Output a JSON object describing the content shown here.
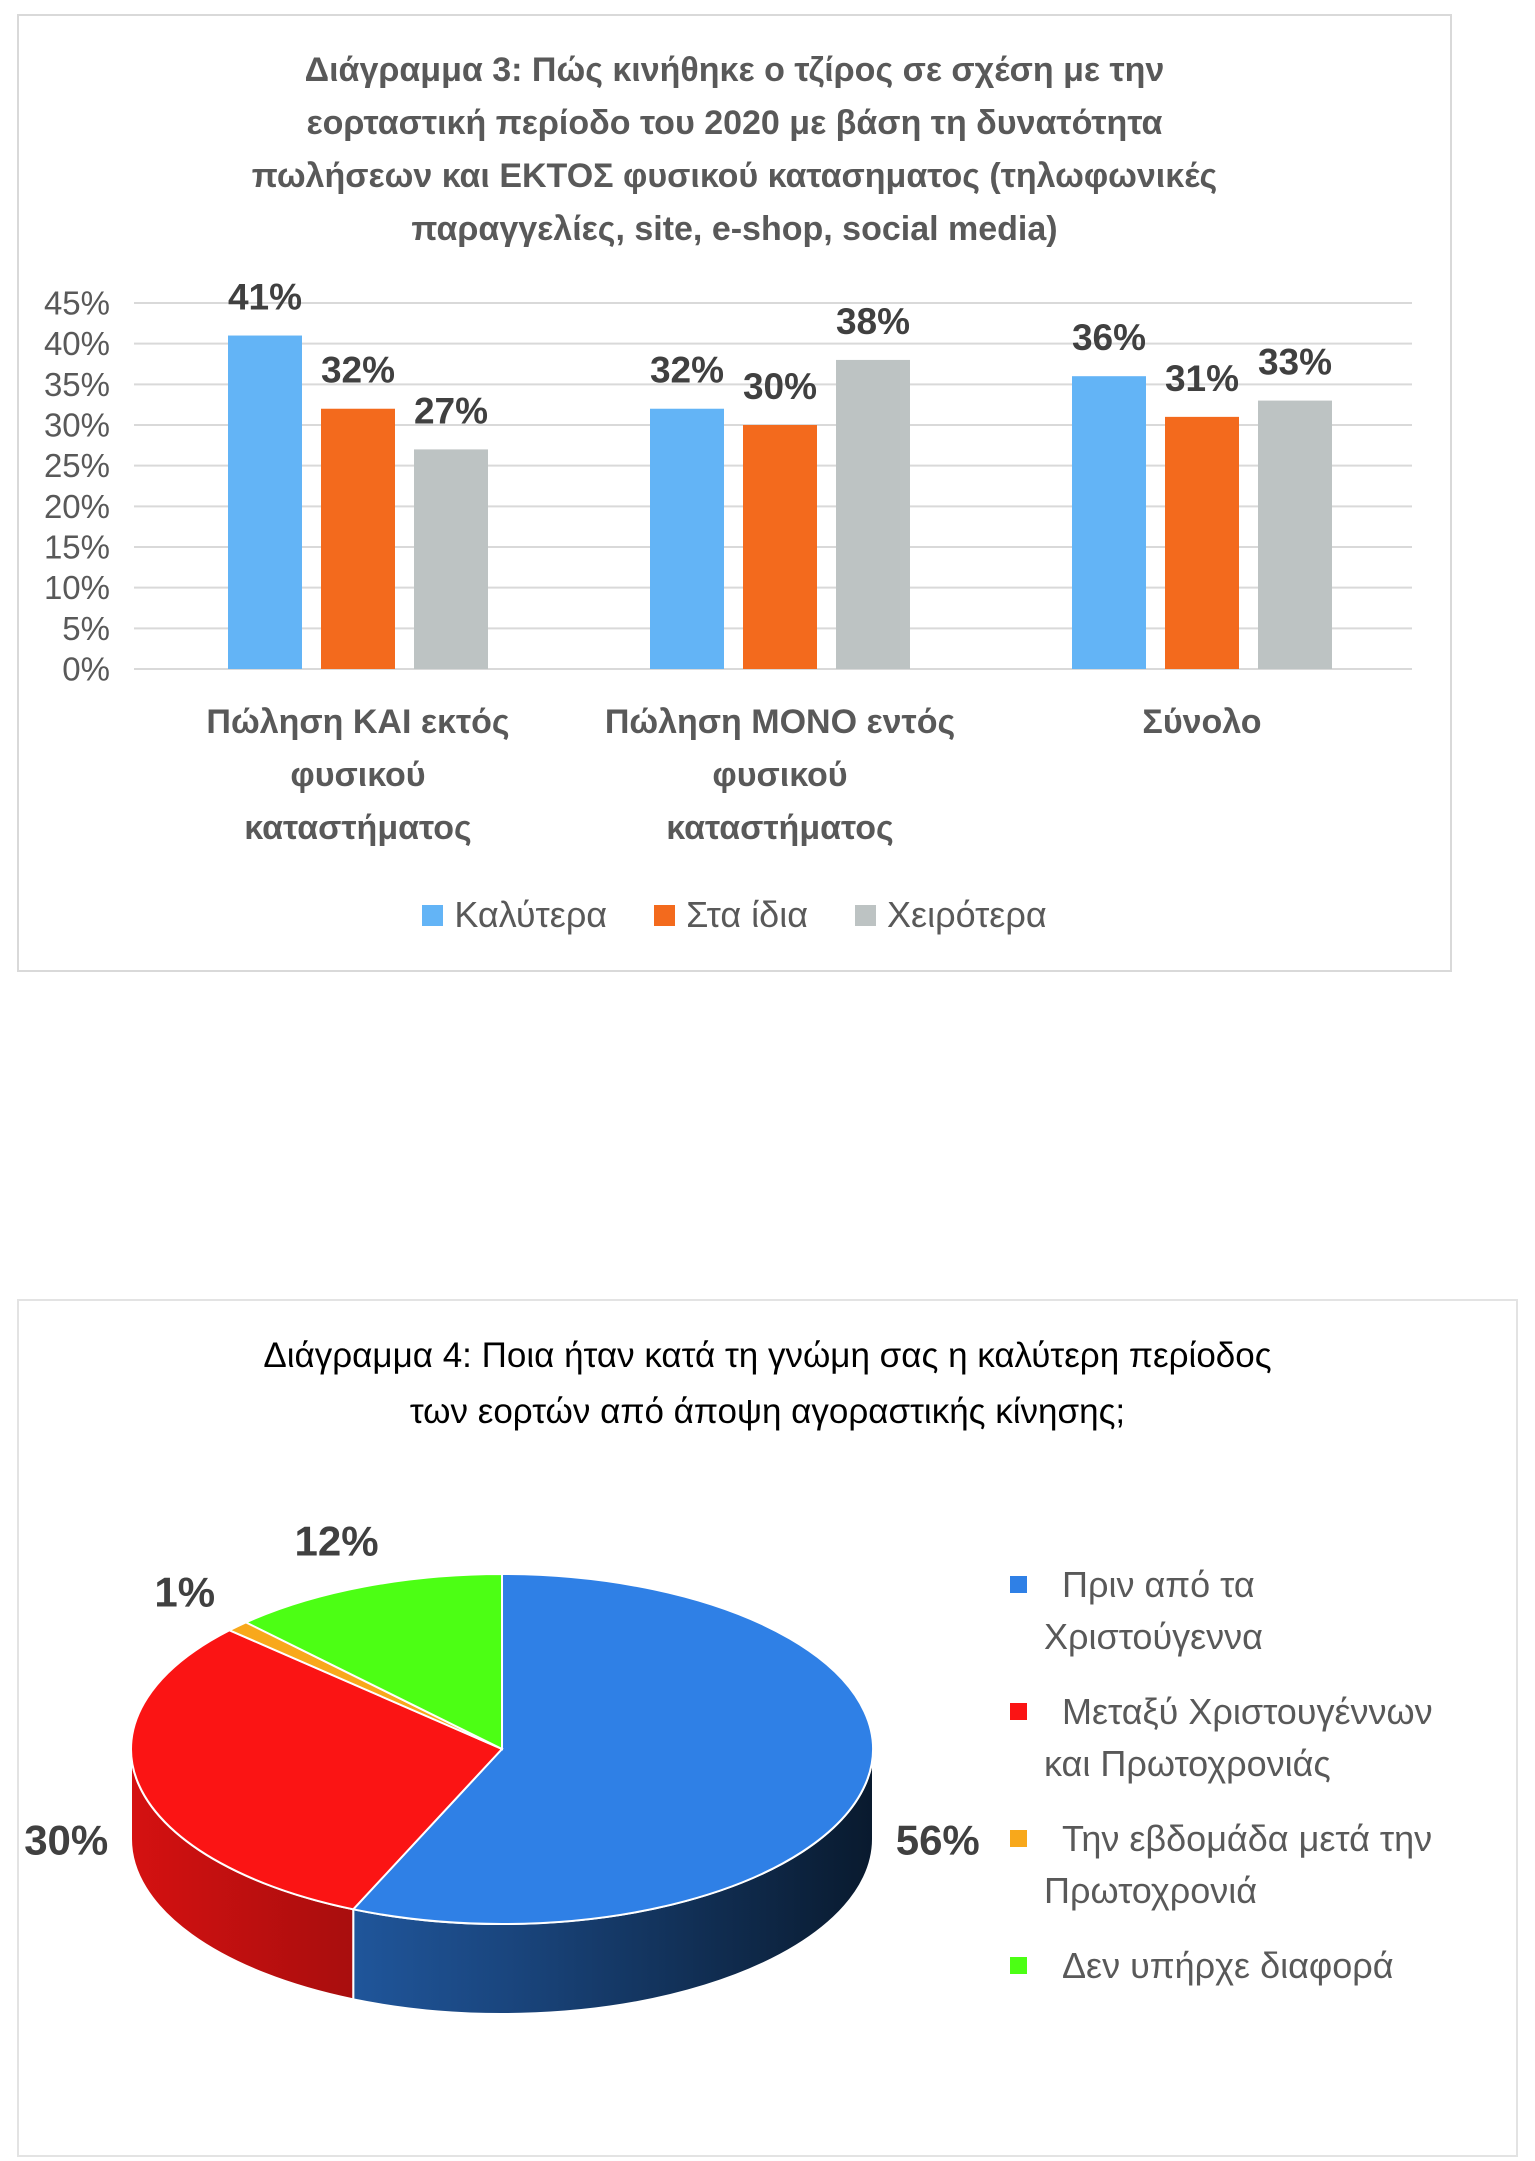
{
  "chart_data": [
    {
      "type": "bar",
      "title": "Διάγραμμα 3: Πώς κινήθηκε ο τζίρος σε σχέση με την\nεορταστική περίοδο του 2020 με βάση τη δυνατότητα\nπωλήσεων και ΕΚΤΟΣ φυσικού κατασηματος (τηλωφωνικές\nπαραγγελίες, site, e-shop, social media)",
      "categories": [
        "Πώληση ΚΑΙ εκτός φυσικού καταστήματος",
        "Πώληση ΜΟΝΟ εντός φυσικού καταστήματος",
        "Σύνολο"
      ],
      "series": [
        {
          "name": "Καλύτερα",
          "color": "#63b4f6",
          "values": [
            41,
            32,
            36
          ]
        },
        {
          "name": "Στα ίδια",
          "color": "#f36a1d",
          "values": [
            32,
            30,
            31
          ]
        },
        {
          "name": "Χειρότερα",
          "color": "#bdc3c3",
          "values": [
            27,
            38,
            33
          ]
        }
      ],
      "unit": "%",
      "ylim": [
        0,
        45
      ],
      "ytick_labels": [
        "0%",
        "5%",
        "10%",
        "15%",
        "20%",
        "25%",
        "30%",
        "35%",
        "40%",
        "45%"
      ],
      "grid": true,
      "legend": "bottom"
    },
    {
      "type": "pie",
      "three_d": true,
      "title": "Διάγραμμα 4: Ποια ήταν κατά τη γνώμη σας η καλύτερη περίοδος\nτων εορτών από άποψη αγοραστικής κίνησης;",
      "labels": [
        "Πριν από τα Χριστούγεννα",
        "Μεταξύ Χριστουγέννων και Πρωτοχρονιάς",
        "Την εβδομάδα μετά την Πρωτοχρονιά",
        "Δεν υπήρχε διαφορά"
      ],
      "values": [
        56,
        30,
        1,
        12
      ],
      "colors": [
        "#2f80e6",
        "#fb1414",
        "#f8a81b",
        "#4cff14"
      ],
      "unit": "%",
      "legend": "right"
    }
  ]
}
